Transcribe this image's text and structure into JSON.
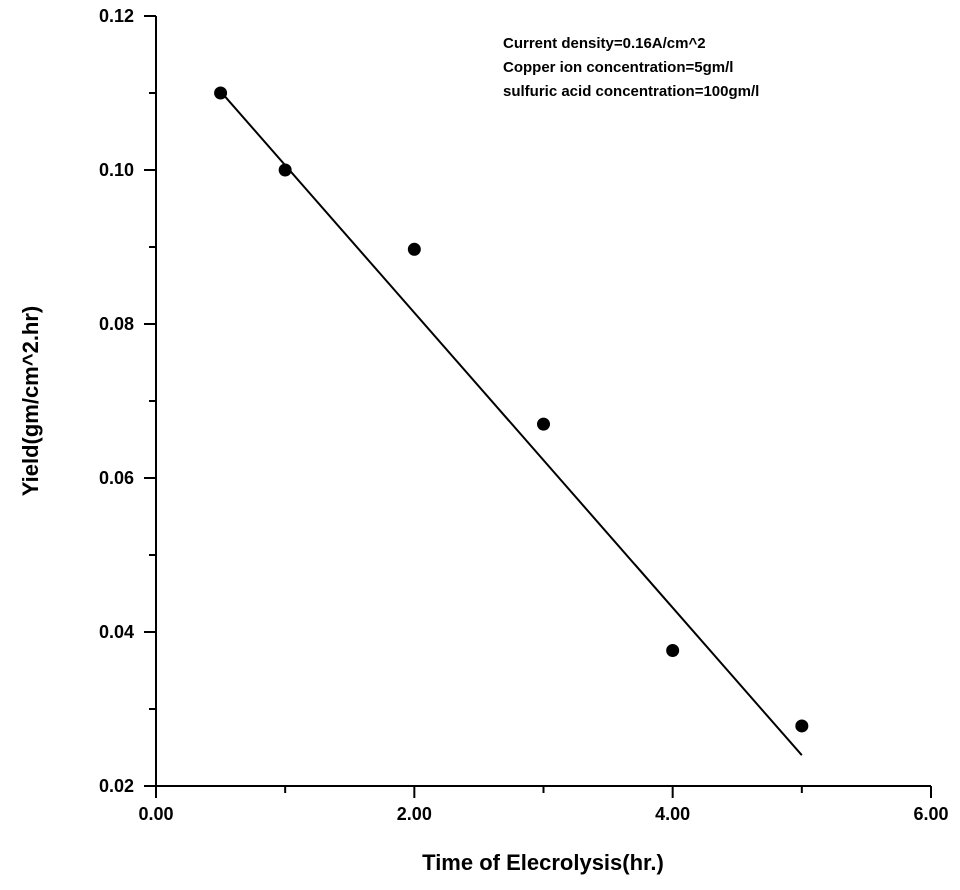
{
  "chart_data": {
    "type": "scatter",
    "xlabel": "Time of Elecrolysis(hr.)",
    "ylabel": "Yield(gm/cm^2.hr)",
    "xlim": [
      0,
      6
    ],
    "ylim": [
      0.02,
      0.12
    ],
    "x_major_ticks": [
      0,
      2,
      4,
      6
    ],
    "x_minor_ticks": [
      1,
      3,
      5
    ],
    "x_tick_labels": [
      "0.00",
      "2.00",
      "4.00",
      "6.00"
    ],
    "y_major_ticks": [
      0.02,
      0.04,
      0.06,
      0.08,
      0.1,
      0.12
    ],
    "y_minor_ticks": [
      0.03,
      0.05,
      0.07,
      0.09,
      0.11
    ],
    "y_tick_labels": [
      "0.02",
      "0.04",
      "0.06",
      "0.08",
      "0.10",
      "0.12"
    ],
    "grid": false,
    "points": {
      "x": [
        0.5,
        1.0,
        2.0,
        3.0,
        4.0,
        5.0
      ],
      "y": [
        0.11,
        0.1,
        0.0897,
        0.067,
        0.0376,
        0.0278
      ]
    },
    "fit_line": {
      "x": [
        0.5,
        5.0
      ],
      "y": [
        0.1102,
        0.024
      ]
    },
    "annotations": [
      "Current density=0.16A/cm^2",
      "Copper ion concentration=5gm/l",
      "sulfuric acid concentration=100gm/l"
    ],
    "colors": {
      "marker": "#000000",
      "line": "#000000",
      "axis": "#000000",
      "background": "#ffffff"
    }
  }
}
